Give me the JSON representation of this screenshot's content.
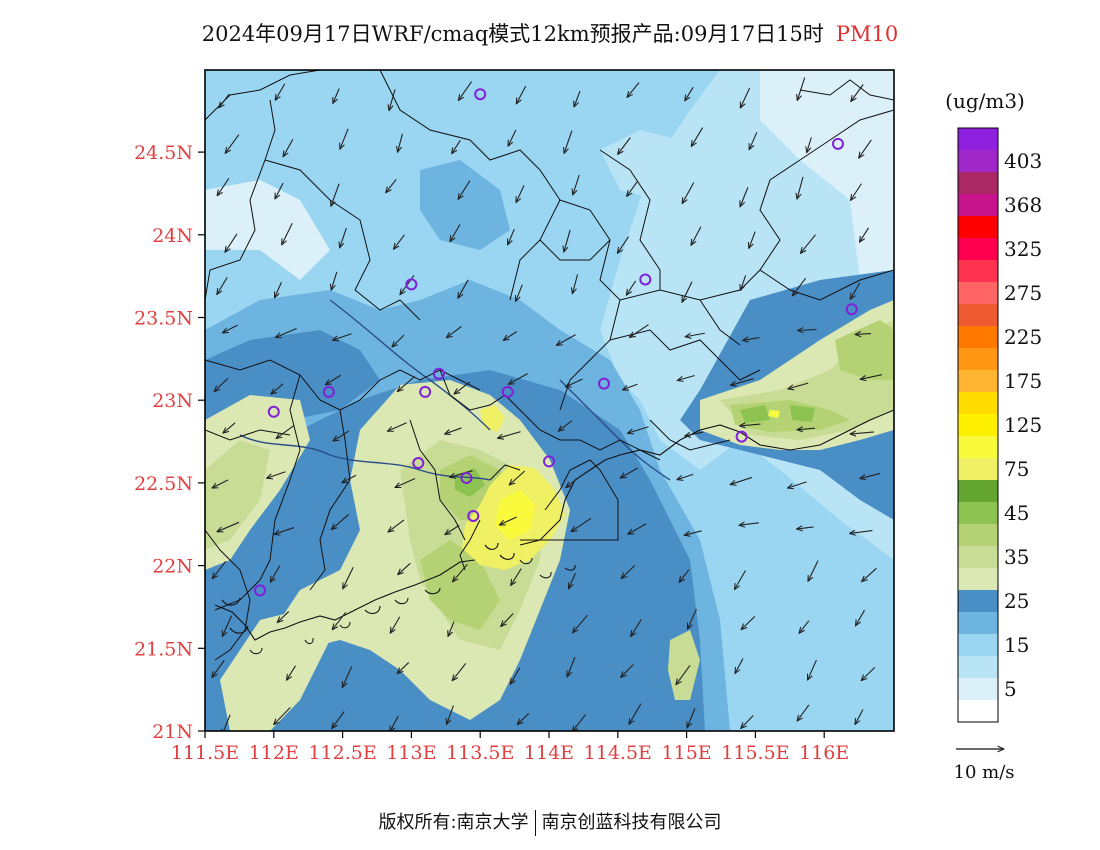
{
  "title": {
    "main": "2024年09月17日WRF/cmaq模式12km预报产品:09月17日15时",
    "variable": "PM10"
  },
  "map": {
    "lon_ticks": [
      "111.5E",
      "112E",
      "112.5E",
      "113E",
      "113.5E",
      "114E",
      "114.5E",
      "115E",
      "115.5E",
      "116E"
    ],
    "lat_ticks": [
      "21N",
      "21.5N",
      "22N",
      "22.5N",
      "23N",
      "23.5N",
      "24N",
      "24.5N"
    ],
    "stations": [
      {
        "lon": 113.5,
        "lat": 24.85
      },
      {
        "lon": 116.1,
        "lat": 24.55
      },
      {
        "lon": 113.0,
        "lat": 23.7
      },
      {
        "lon": 114.7,
        "lat": 23.73
      },
      {
        "lon": 116.2,
        "lat": 23.55
      },
      {
        "lon": 112.4,
        "lat": 23.05
      },
      {
        "lon": 113.1,
        "lat": 23.05
      },
      {
        "lon": 113.2,
        "lat": 23.16
      },
      {
        "lon": 113.7,
        "lat": 23.05
      },
      {
        "lon": 114.4,
        "lat": 23.1
      },
      {
        "lon": 112.0,
        "lat": 22.93
      },
      {
        "lon": 113.05,
        "lat": 22.62
      },
      {
        "lon": 113.4,
        "lat": 22.53
      },
      {
        "lon": 114.0,
        "lat": 22.63
      },
      {
        "lon": 113.45,
        "lat": 22.3
      },
      {
        "lon": 111.9,
        "lat": 21.85
      },
      {
        "lon": 115.4,
        "lat": 22.78
      }
    ]
  },
  "colorbar": {
    "unit": "(ug/m3)",
    "levels": [
      {
        "value": "",
        "color": "#ffffff"
      },
      {
        "value": "5",
        "color": "#dcf0fa"
      },
      {
        "value": "",
        "color": "#b9e4f6"
      },
      {
        "value": "15",
        "color": "#9ad6f2"
      },
      {
        "value": "",
        "color": "#6db4e0"
      },
      {
        "value": "25",
        "color": "#4a8ec6"
      },
      {
        "value": "",
        "color": "#dce8b4"
      },
      {
        "value": "35",
        "color": "#c8dc96"
      },
      {
        "value": "",
        "color": "#b4d273"
      },
      {
        "value": "45",
        "color": "#8cc350"
      },
      {
        "value": "",
        "color": "#64a532"
      },
      {
        "value": "75",
        "color": "#f0f064"
      },
      {
        "value": "",
        "color": "#fafa3c"
      },
      {
        "value": "125",
        "color": "#fff000"
      },
      {
        "value": "",
        "color": "#ffdc00"
      },
      {
        "value": "175",
        "color": "#ffb432"
      },
      {
        "value": "",
        "color": "#ff9614"
      },
      {
        "value": "225",
        "color": "#ff7800"
      },
      {
        "value": "",
        "color": "#f05a32"
      },
      {
        "value": "275",
        "color": "#ff6464"
      },
      {
        "value": "",
        "color": "#ff3250"
      },
      {
        "value": "325",
        "color": "#ff0050"
      },
      {
        "value": "",
        "color": "#ff0000"
      },
      {
        "value": "368",
        "color": "#c8148c"
      },
      {
        "value": "",
        "color": "#aa2864"
      },
      {
        "value": "403",
        "color": "#a028c8"
      },
      {
        "value": "",
        "color": "#9020e0"
      }
    ]
  },
  "wind_legend": {
    "label": "10 m/s"
  },
  "footer": {
    "copyright": "版权所有:南京大学",
    "company": "南京创蓝科技有限公司"
  }
}
